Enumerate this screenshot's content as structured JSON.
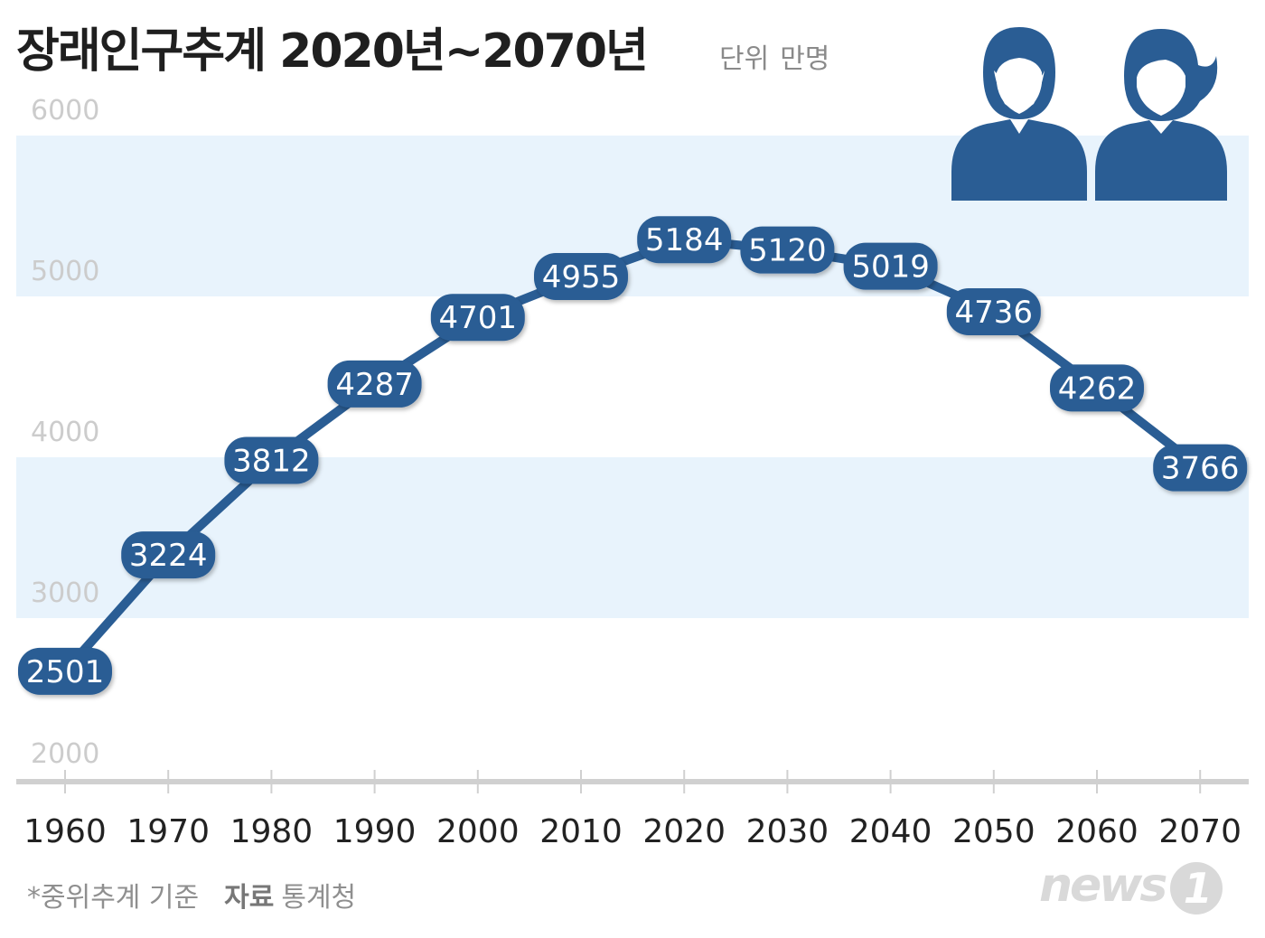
{
  "title": "장래인구추계 2020년~2070년",
  "unit": {
    "label": "단위",
    "value": "만명"
  },
  "footer": {
    "note": "*중위추계 기준",
    "source_label": "자료",
    "source_value": "통계청"
  },
  "logo": {
    "text": "news",
    "mark": "1"
  },
  "colors": {
    "line": "#2a5d94",
    "band": "#e8f3fc",
    "grid_label": "#cccccc",
    "axis": "#d0d0d0",
    "icon": "#2a5d94"
  },
  "icons": [
    "man-icon",
    "woman-icon"
  ],
  "chart_data": {
    "type": "line",
    "title": "장래인구추계 2020년~2070년",
    "ylabel": "단위 만명",
    "ylim": [
      2000,
      6000
    ],
    "yticks": [
      2000,
      3000,
      4000,
      5000,
      6000
    ],
    "categories": [
      "1960",
      "1970",
      "1980",
      "1990",
      "2000",
      "2010",
      "2020",
      "2030",
      "2040",
      "2050",
      "2060",
      "2070"
    ],
    "series": [
      {
        "values": [
          2501,
          3224,
          3812,
          4287,
          4701,
          4955,
          5184,
          5120,
          5019,
          4736,
          4262,
          3766
        ],
        "labels": [
          "2501",
          "3224",
          "3812",
          "4287",
          "4701",
          "4955",
          "5184",
          "5120",
          "5019",
          "4736",
          "4262",
          "3766"
        ]
      }
    ],
    "grid": "alternating bands",
    "legend": "none"
  }
}
